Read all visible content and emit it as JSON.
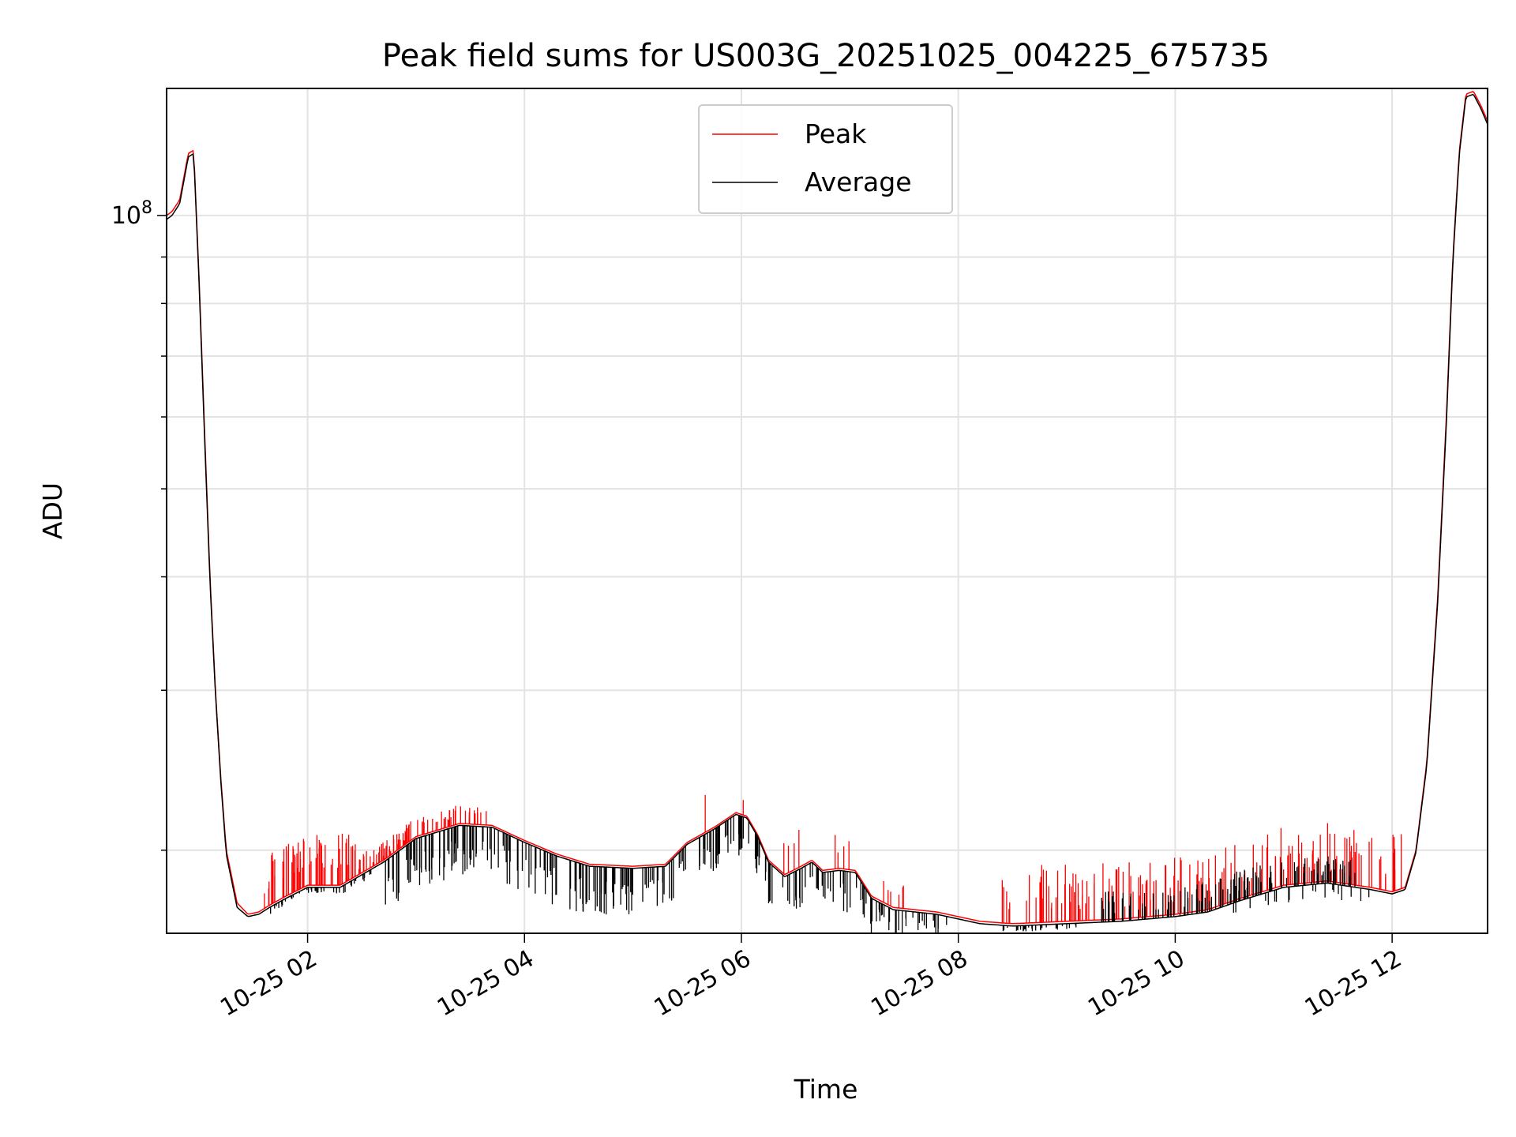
{
  "chart_data": {
    "type": "line",
    "title": "Peak field sums for US003G_20251025_004225_675735",
    "xlabel": "Time",
    "ylabel": "ADU",
    "yscale": "log",
    "xlim_hours": [
      0.7,
      12.88
    ],
    "ylim": [
      16200000,
      138000000
    ],
    "grid": true,
    "legend_position": "upper center",
    "x_tick_hours": [
      2,
      4,
      6,
      8,
      10,
      12
    ],
    "x_tick_labels": [
      "10-25 02",
      "10-25 04",
      "10-25 06",
      "10-25 08",
      "10-25 10",
      "10-25 12"
    ],
    "y_major_ticks": [
      100000000
    ],
    "y_major_labels": [
      {
        "base": "10",
        "exp": "8"
      }
    ],
    "y_minor_ticks": [
      20000000,
      30000000,
      40000000,
      50000000,
      60000000,
      70000000,
      80000000,
      90000000
    ],
    "series": [
      {
        "name": "Peak",
        "color": "#ff0000",
        "x_hours": [
          0.7,
          0.75,
          0.82,
          0.9,
          0.95,
          1.0,
          1.05,
          1.1,
          1.15,
          1.2,
          1.25,
          1.35,
          1.45,
          1.55,
          1.65,
          1.8,
          2.0,
          2.3,
          2.7,
          3.0,
          3.4,
          3.7,
          4.0,
          4.3,
          4.6,
          5.0,
          5.3,
          5.5,
          5.75,
          5.95,
          6.05,
          6.15,
          6.25,
          6.4,
          6.55,
          6.65,
          6.75,
          6.9,
          7.05,
          7.2,
          7.4,
          7.8,
          8.2,
          8.5,
          9.0,
          9.5,
          10.0,
          10.3,
          10.6,
          11.0,
          11.4,
          11.8,
          12.0,
          12.12,
          12.22,
          12.32,
          12.42,
          12.5,
          12.56,
          12.62,
          12.68,
          12.75,
          12.82,
          12.88
        ],
        "values": [
          100000000,
          101000000,
          104000000,
          117000000,
          118000000,
          85000000,
          58000000,
          40000000,
          30000000,
          24000000,
          20000000,
          17500000,
          17000000,
          17100000,
          17400000,
          17800000,
          18300000,
          18300000,
          19500000,
          20700000,
          21400000,
          21300000,
          20500000,
          19800000,
          19300000,
          19200000,
          19300000,
          20400000,
          21200000,
          22000000,
          21800000,
          20800000,
          19500000,
          18800000,
          19200000,
          19500000,
          19000000,
          19100000,
          19000000,
          17800000,
          17300000,
          17100000,
          16700000,
          16600000,
          16700000,
          16800000,
          17000000,
          17200000,
          17700000,
          18300000,
          18500000,
          18200000,
          18000000,
          18200000,
          20000000,
          25000000,
          38000000,
          60000000,
          90000000,
          118000000,
          136000000,
          137000000,
          132000000,
          127000000
        ],
        "spikes": [
          {
            "hour_from": 1.6,
            "hour_to": 2.45,
            "count": 60,
            "direction": "up",
            "min_factor": 1.03,
            "max_factor": 1.14
          },
          {
            "hour_from": 2.45,
            "hour_to": 3.65,
            "count": 80,
            "direction": "up",
            "min_factor": 1.01,
            "max_factor": 1.05
          },
          {
            "hour_from": 7.3,
            "hour_to": 7.65,
            "count": 6,
            "direction": "up",
            "min_factor": 1.02,
            "max_factor": 1.06
          },
          {
            "hour_from": 8.4,
            "hour_to": 12.1,
            "count": 160,
            "direction": "up",
            "min_factor": 1.03,
            "max_factor": 1.16
          },
          {
            "hour_from": 5.3,
            "hour_to": 7.0,
            "count": 10,
            "direction": "up",
            "min_factor": 1.03,
            "max_factor": 1.1
          }
        ]
      },
      {
        "name": "Average",
        "color": "#000000",
        "x_hours": [
          0.7,
          0.75,
          0.82,
          0.9,
          0.95,
          1.0,
          1.05,
          1.1,
          1.15,
          1.2,
          1.25,
          1.35,
          1.45,
          1.55,
          1.65,
          1.8,
          2.0,
          2.3,
          2.7,
          3.0,
          3.4,
          3.7,
          4.0,
          4.3,
          4.6,
          5.0,
          5.3,
          5.5,
          5.75,
          5.95,
          6.05,
          6.15,
          6.25,
          6.4,
          6.55,
          6.65,
          6.75,
          6.9,
          7.05,
          7.2,
          7.4,
          7.8,
          8.2,
          8.5,
          9.0,
          9.5,
          10.0,
          10.3,
          10.6,
          11.0,
          11.4,
          11.8,
          12.0,
          12.12,
          12.22,
          12.32,
          12.42,
          12.5,
          12.56,
          12.62,
          12.68,
          12.75,
          12.82,
          12.88
        ],
        "values": [
          99000000,
          100000000,
          103000000,
          116000000,
          117000000,
          84000000,
          57000000,
          39500000,
          29800000,
          23800000,
          19800000,
          17300000,
          16900000,
          17000000,
          17300000,
          17700000,
          18200000,
          18200000,
          19400000,
          20600000,
          21300000,
          21200000,
          20400000,
          19700000,
          19200000,
          19100000,
          19200000,
          20300000,
          21100000,
          21900000,
          21700000,
          20700000,
          19400000,
          18700000,
          19100000,
          19400000,
          18900000,
          19000000,
          18900000,
          17700000,
          17200000,
          17000000,
          16600000,
          16500000,
          16600000,
          16700000,
          16900000,
          17100000,
          17600000,
          18200000,
          18400000,
          18100000,
          17900000,
          18100000,
          19900000,
          24800000,
          37500000,
          59000000,
          89000000,
          117000000,
          135000000,
          136000000,
          131000000,
          126000000
        ],
        "spikes": [
          {
            "hour_from": 1.65,
            "hour_to": 2.6,
            "count": 40,
            "direction": "down",
            "min_factor": 0.98,
            "max_factor": 0.995
          },
          {
            "hour_from": 2.7,
            "hour_to": 5.0,
            "count": 140,
            "direction": "down",
            "min_factor": 0.88,
            "max_factor": 0.97
          },
          {
            "hour_from": 5.0,
            "hour_to": 5.5,
            "count": 20,
            "direction": "down",
            "min_factor": 0.9,
            "max_factor": 0.97
          },
          {
            "hour_from": 5.6,
            "hour_to": 6.2,
            "count": 40,
            "direction": "down",
            "min_factor": 0.9,
            "max_factor": 0.97
          },
          {
            "hour_from": 6.2,
            "hour_to": 7.2,
            "count": 45,
            "direction": "down",
            "min_factor": 0.9,
            "max_factor": 0.97
          },
          {
            "hour_from": 7.2,
            "hour_to": 7.9,
            "count": 30,
            "direction": "down",
            "min_factor": 0.93,
            "max_factor": 0.985
          },
          {
            "hour_from": 8.4,
            "hour_to": 9.1,
            "count": 30,
            "direction": "down",
            "min_factor": 0.985,
            "max_factor": 0.995
          },
          {
            "hour_from": 9.3,
            "hour_to": 11.7,
            "count": 120,
            "direction": "up",
            "min_factor": 1.02,
            "max_factor": 1.08
          },
          {
            "hour_from": 10.5,
            "hour_to": 11.8,
            "count": 20,
            "direction": "down",
            "min_factor": 0.96,
            "max_factor": 0.99
          }
        ]
      }
    ]
  }
}
